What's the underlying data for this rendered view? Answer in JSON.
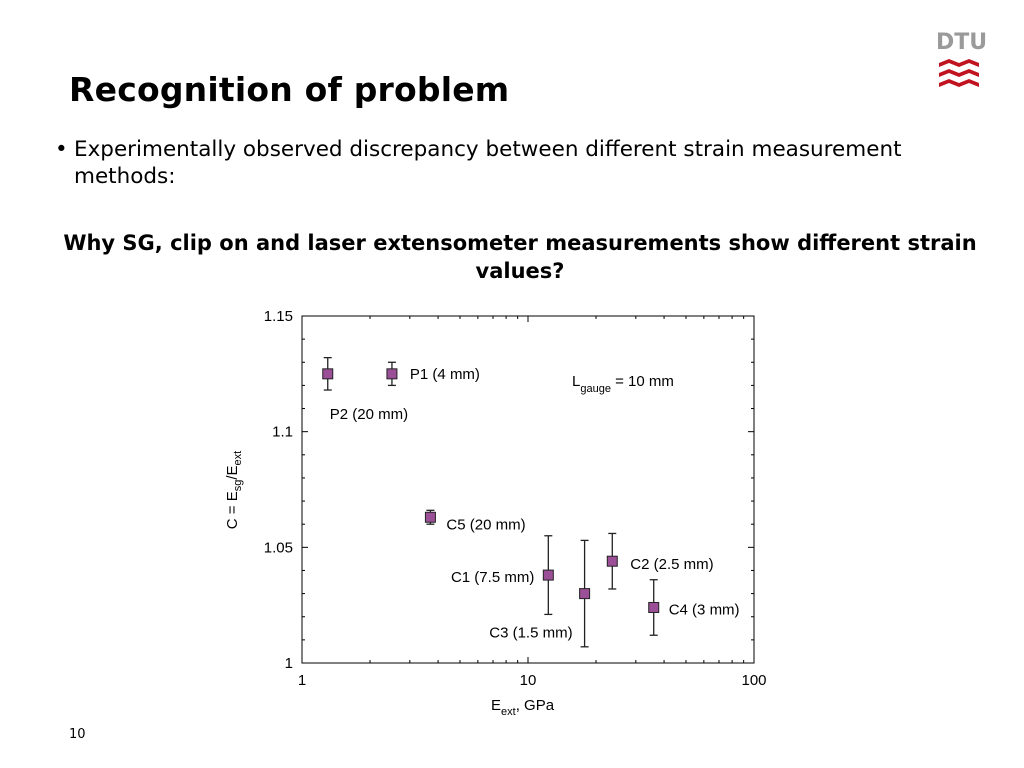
{
  "slide": {
    "title": "Recognition of problem",
    "bullet": "Experimentally observed discrepancy between different strain measurement methods:",
    "question": "Why SG, clip on  and  laser extensometer measurements show different strain values?",
    "page_number": "10",
    "logo_text": "DTU",
    "colors": {
      "logo_red": "#c1121f",
      "logo_gray": "#9a9a9a"
    }
  },
  "chart_data": {
    "type": "scatter",
    "x_scale": "log",
    "xlim": [
      1,
      100
    ],
    "ylim": [
      1,
      1.15
    ],
    "xlabel": "E",
    "xlabel_sub": "ext",
    "xlabel_suffix": ", GPa",
    "ylabel_prefix": "C = E",
    "ylabel_sub1": "sg",
    "ylabel_mid": "/E",
    "ylabel_sub2": "ext",
    "x_ticks": [
      "1",
      "10",
      "100"
    ],
    "y_ticks": [
      "1",
      "1.05",
      "1.1",
      "1.15"
    ],
    "annotation": {
      "text": "L",
      "sub": "gauge",
      "suffix": " = 10 mm"
    },
    "marker_color": "#9b4f96",
    "points": [
      {
        "label": "P2 (20 mm)",
        "x": 1.3,
        "y": 1.125,
        "err": 0.007
      },
      {
        "label": "P1 (4 mm)",
        "x": 2.5,
        "y": 1.125,
        "err": 0.005
      },
      {
        "label": "C5 (20 mm)",
        "x": 3.7,
        "y": 1.063,
        "err": 0.003
      },
      {
        "label": "C1 (7.5 mm)",
        "x": 12.3,
        "y": 1.038,
        "err": 0.017
      },
      {
        "label": "C3 (1.5 mm)",
        "x": 17.8,
        "y": 1.03,
        "err": 0.023
      },
      {
        "label": "C2 (2.5 mm)",
        "x": 23.6,
        "y": 1.044,
        "err": 0.012
      },
      {
        "label": "C4 (3 mm)",
        "x": 36,
        "y": 1.024,
        "err": 0.012
      }
    ]
  }
}
